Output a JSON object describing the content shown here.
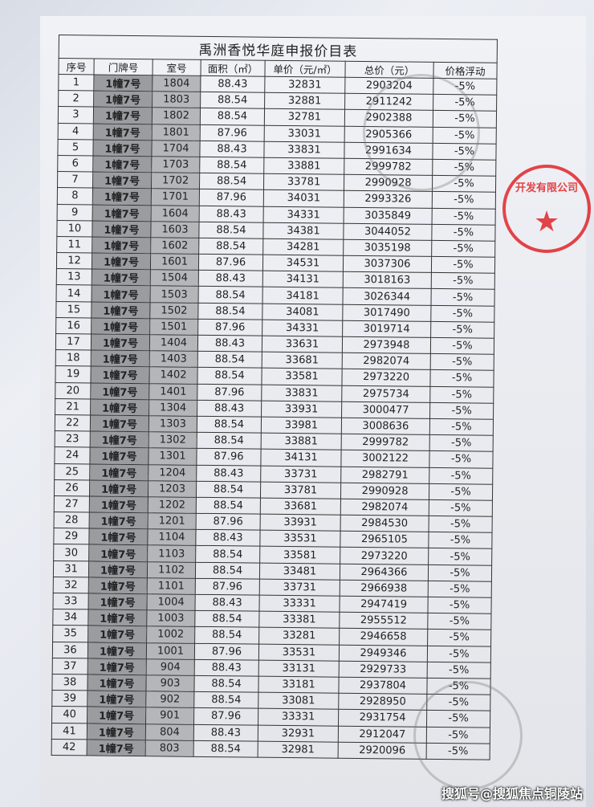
{
  "document": {
    "title": "禹洲香悦华庭申报价目表",
    "headers": [
      "序号",
      "门牌号",
      "室号",
      "面积（㎡）",
      "单价（元/㎡）",
      "总价（元）",
      "价格浮动"
    ],
    "rows": [
      [
        "1",
        "1幢7号",
        "1804",
        "88.43",
        "32831",
        "2903204",
        "-5%"
      ],
      [
        "2",
        "1幢7号",
        "1803",
        "88.54",
        "32881",
        "2911242",
        "-5%"
      ],
      [
        "3",
        "1幢7号",
        "1802",
        "88.54",
        "32781",
        "2902388",
        "-5%"
      ],
      [
        "4",
        "1幢7号",
        "1801",
        "87.96",
        "33031",
        "2905366",
        "-5%"
      ],
      [
        "5",
        "1幢7号",
        "1704",
        "88.43",
        "33831",
        "2991634",
        "-5%"
      ],
      [
        "6",
        "1幢7号",
        "1703",
        "88.54",
        "33881",
        "2999782",
        "-5%"
      ],
      [
        "7",
        "1幢7号",
        "1702",
        "88.54",
        "33781",
        "2990928",
        "-5%"
      ],
      [
        "8",
        "1幢7号",
        "1701",
        "87.96",
        "34031",
        "2993326",
        "-5%"
      ],
      [
        "9",
        "1幢7号",
        "1604",
        "88.43",
        "34331",
        "3035849",
        "-5%"
      ],
      [
        "10",
        "1幢7号",
        "1603",
        "88.54",
        "34381",
        "3044052",
        "-5%"
      ],
      [
        "11",
        "1幢7号",
        "1602",
        "88.54",
        "34281",
        "3035198",
        "-5%"
      ],
      [
        "12",
        "1幢7号",
        "1601",
        "87.96",
        "34531",
        "3037306",
        "-5%"
      ],
      [
        "13",
        "1幢7号",
        "1504",
        "88.43",
        "34131",
        "3018163",
        "-5%"
      ],
      [
        "14",
        "1幢7号",
        "1503",
        "88.54",
        "34181",
        "3026344",
        "-5%"
      ],
      [
        "15",
        "1幢7号",
        "1502",
        "88.54",
        "34081",
        "3017490",
        "-5%"
      ],
      [
        "16",
        "1幢7号",
        "1501",
        "87.96",
        "34331",
        "3019714",
        "-5%"
      ],
      [
        "17",
        "1幢7号",
        "1404",
        "88.43",
        "33631",
        "2973948",
        "-5%"
      ],
      [
        "18",
        "1幢7号",
        "1403",
        "88.54",
        "33681",
        "2982074",
        "-5%"
      ],
      [
        "19",
        "1幢7号",
        "1402",
        "88.54",
        "33581",
        "2973220",
        "-5%"
      ],
      [
        "20",
        "1幢7号",
        "1401",
        "87.96",
        "33831",
        "2975734",
        "-5%"
      ],
      [
        "21",
        "1幢7号",
        "1304",
        "88.43",
        "33931",
        "3000477",
        "-5%"
      ],
      [
        "22",
        "1幢7号",
        "1303",
        "88.54",
        "33981",
        "3008636",
        "-5%"
      ],
      [
        "23",
        "1幢7号",
        "1302",
        "88.54",
        "33881",
        "2999782",
        "-5%"
      ],
      [
        "24",
        "1幢7号",
        "1301",
        "87.96",
        "34131",
        "3002122",
        "-5%"
      ],
      [
        "25",
        "1幢7号",
        "1204",
        "88.43",
        "33731",
        "2982791",
        "-5%"
      ],
      [
        "26",
        "1幢7号",
        "1203",
        "88.54",
        "33781",
        "2990928",
        "-5%"
      ],
      [
        "27",
        "1幢7号",
        "1202",
        "88.54",
        "33681",
        "2982074",
        "-5%"
      ],
      [
        "28",
        "1幢7号",
        "1201",
        "87.96",
        "33931",
        "2984530",
        "-5%"
      ],
      [
        "29",
        "1幢7号",
        "1104",
        "88.43",
        "33531",
        "2965105",
        "-5%"
      ],
      [
        "30",
        "1幢7号",
        "1103",
        "88.54",
        "33581",
        "2973220",
        "-5%"
      ],
      [
        "31",
        "1幢7号",
        "1102",
        "88.54",
        "33481",
        "2964366",
        "-5%"
      ],
      [
        "32",
        "1幢7号",
        "1101",
        "87.96",
        "33731",
        "2966938",
        "-5%"
      ],
      [
        "33",
        "1幢7号",
        "1004",
        "88.43",
        "33331",
        "2947419",
        "-5%"
      ],
      [
        "34",
        "1幢7号",
        "1003",
        "88.54",
        "33381",
        "2955512",
        "-5%"
      ],
      [
        "35",
        "1幢7号",
        "1002",
        "88.54",
        "33281",
        "2946658",
        "-5%"
      ],
      [
        "36",
        "1幢7号",
        "1001",
        "87.96",
        "33531",
        "2949346",
        "-5%"
      ],
      [
        "37",
        "1幢7号",
        "904",
        "88.43",
        "33131",
        "2929733",
        "-5%"
      ],
      [
        "38",
        "1幢7号",
        "903",
        "88.54",
        "33181",
        "2937804",
        "-5%"
      ],
      [
        "39",
        "1幢7号",
        "902",
        "88.54",
        "33081",
        "2928950",
        "-5%"
      ],
      [
        "40",
        "1幢7号",
        "901",
        "87.96",
        "33331",
        "2931754",
        "-5%"
      ],
      [
        "41",
        "1幢7号",
        "804",
        "88.43",
        "32931",
        "2912047",
        "-5%"
      ],
      [
        "42",
        "1幢7号",
        "803",
        "88.54",
        "32981",
        "2920096",
        "-5%"
      ]
    ]
  },
  "stamp": {
    "text": "开发有限公司",
    "color": "#e0262b"
  },
  "watermark": "搜狐号@搜狐焦点铜陵站"
}
